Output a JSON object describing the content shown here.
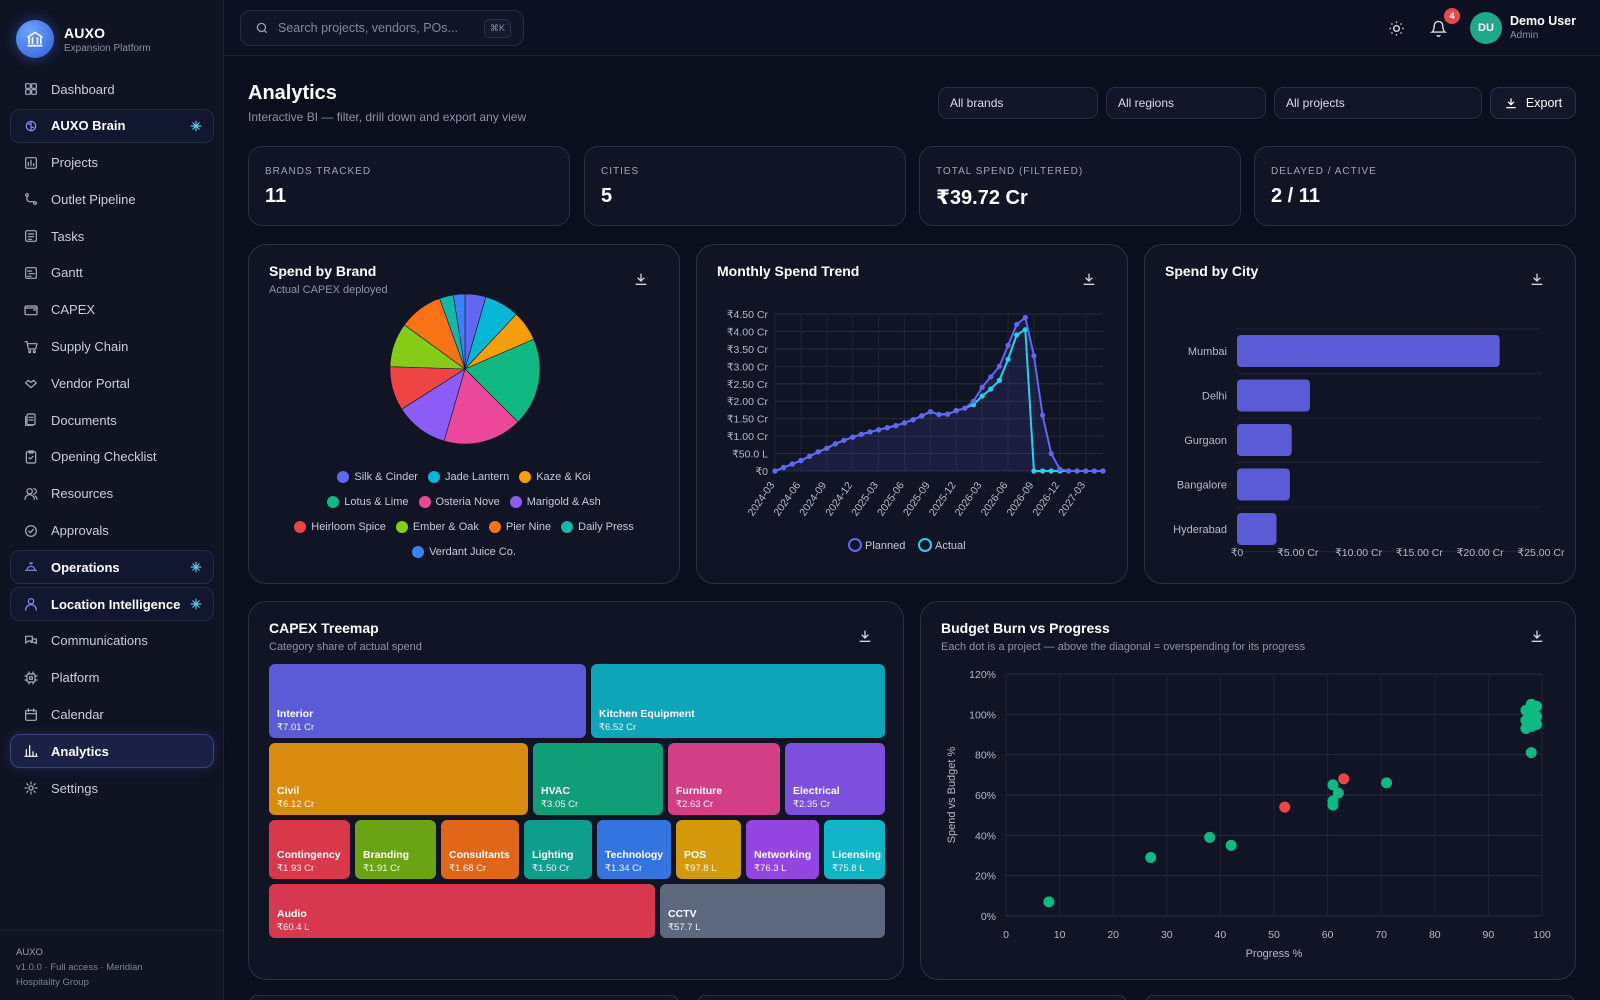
{
  "app": {
    "name": "AUXO",
    "subtitle": "Expansion Platform"
  },
  "sidebar": {
    "items": [
      {
        "label": "Dashboard",
        "icon": "dashboard-icon"
      },
      {
        "label": "AUXO Brain",
        "icon": "brain-icon",
        "pill": true
      },
      {
        "label": "Projects",
        "icon": "projects-icon"
      },
      {
        "label": "Outlet Pipeline",
        "icon": "pipeline-icon"
      },
      {
        "label": "Tasks",
        "icon": "tasks-icon"
      },
      {
        "label": "Gantt",
        "icon": "gantt-icon"
      },
      {
        "label": "CAPEX",
        "icon": "wallet-icon"
      },
      {
        "label": "Supply Chain",
        "icon": "cart-icon"
      },
      {
        "label": "Vendor Portal",
        "icon": "handshake-icon"
      },
      {
        "label": "Documents",
        "icon": "documents-icon"
      },
      {
        "label": "Opening Checklist",
        "icon": "checklist-icon"
      },
      {
        "label": "Resources",
        "icon": "users-icon"
      },
      {
        "label": "Approvals",
        "icon": "check-circle-icon"
      },
      {
        "label": "Operations",
        "icon": "bell-service-icon",
        "pill": true
      },
      {
        "label": "Location Intelligence",
        "icon": "location-icon",
        "pill": true
      },
      {
        "label": "Communications",
        "icon": "chat-icon"
      },
      {
        "label": "Platform",
        "icon": "chip-icon"
      },
      {
        "label": "Calendar",
        "icon": "calendar-icon"
      },
      {
        "label": "Analytics",
        "icon": "bar-chart-icon",
        "active": true
      },
      {
        "label": "Settings",
        "icon": "gear-icon"
      }
    ],
    "footer": {
      "title": "AUXO",
      "line1": "v1.0.0 · Full access · Meridian",
      "line2": "Hospitality Group"
    }
  },
  "topbar": {
    "search_placeholder": "Search projects, vendors, POs...",
    "shortcut": "⌘K",
    "notifications": "4",
    "user": {
      "initials": "DU",
      "name": "Demo User",
      "role": "Admin"
    }
  },
  "header": {
    "title": "Analytics",
    "subtitle": "Interactive BI — filter, drill down and export any view",
    "filters": [
      "All brands",
      "All regions",
      "All projects"
    ],
    "export_label": "Export"
  },
  "kpis": [
    {
      "label": "Brands Tracked",
      "value": "11"
    },
    {
      "label": "Cities",
      "value": "5"
    },
    {
      "label": "Total Spend (Filtered)",
      "value": "₹39.72 Cr"
    },
    {
      "label": "Delayed / Active",
      "value": "2 / 11"
    }
  ],
  "panels": {
    "brand": {
      "title": "Spend by Brand",
      "subtitle": "Actual CAPEX deployed"
    },
    "trend": {
      "title": "Monthly Spend Trend"
    },
    "city": {
      "title": "Spend by City"
    },
    "treemap": {
      "title": "CAPEX Treemap",
      "subtitle": "Category share of actual spend"
    },
    "burn": {
      "title": "Budget Burn vs Progress",
      "subtitle": "Each dot is a project — above the diagonal = overspending for its progress"
    }
  },
  "chart_data": [
    {
      "type": "pie",
      "title": "Spend by Brand",
      "subtitle": "Actual CAPEX deployed",
      "slices": [
        {
          "label": "Silk & Cinder",
          "value": 4.5,
          "color": "#6366f1"
        },
        {
          "label": "Jade Lantern",
          "value": 7.5,
          "color": "#06b6d4"
        },
        {
          "label": "Kaze & Koi",
          "value": 6.5,
          "color": "#f59e0b"
        },
        {
          "label": "Lotus & Lime",
          "value": 19.0,
          "color": "#10b981"
        },
        {
          "label": "Osteria Nove",
          "value": 17.0,
          "color": "#ec4899"
        },
        {
          "label": "Marigold & Ash",
          "value": 11.5,
          "color": "#8b5cf6"
        },
        {
          "label": "Heirloom Spice",
          "value": 9.5,
          "color": "#ef4444"
        },
        {
          "label": "Ember & Oak",
          "value": 9.5,
          "color": "#84cc16"
        },
        {
          "label": "Pier Nine",
          "value": 9.5,
          "color": "#f97316"
        },
        {
          "label": "Daily Press",
          "value": 3.0,
          "color": "#14b8a6"
        },
        {
          "label": "Verdant Juice Co.",
          "value": 2.5,
          "color": "#3b82f6"
        }
      ]
    },
    {
      "type": "line",
      "title": "Monthly Spend Trend",
      "x": [
        "2024-03",
        "2024-04",
        "2024-05",
        "2024-06",
        "2024-07",
        "2024-08",
        "2024-09",
        "2024-10",
        "2024-11",
        "2024-12",
        "2025-01",
        "2025-02",
        "2025-03",
        "2025-04",
        "2025-05",
        "2025-06",
        "2025-07",
        "2025-08",
        "2025-09",
        "2025-10",
        "2025-11",
        "2025-12",
        "2026-01",
        "2026-02",
        "2026-03",
        "2026-04",
        "2026-05",
        "2026-06",
        "2026-07",
        "2026-08",
        "2026-09",
        "2026-10",
        "2026-11",
        "2026-12",
        "2027-01",
        "2027-02",
        "2027-03",
        "2027-04",
        "2027-05"
      ],
      "x_ticks": [
        "2024-03",
        "2024-06",
        "2024-09",
        "2024-12",
        "2025-03",
        "2025-06",
        "2025-09",
        "2025-12",
        "2026-03",
        "2026-06",
        "2026-09",
        "2026-12",
        "2027-03"
      ],
      "y_ticks": [
        "₹0",
        "₹50.0 L",
        "₹1.00 Cr",
        "₹1.50 Cr",
        "₹2.00 Cr",
        "₹2.50 Cr",
        "₹3.00 Cr",
        "₹3.50 Cr",
        "₹4.00 Cr",
        "₹4.50 Cr"
      ],
      "ylim": [
        0,
        4.5
      ],
      "unit": "Cr",
      "series": [
        {
          "name": "Planned",
          "color": "#6366f1",
          "values": [
            0.0,
            0.1,
            0.2,
            0.3,
            0.42,
            0.55,
            0.65,
            0.78,
            0.88,
            0.97,
            1.05,
            1.12,
            1.18,
            1.24,
            1.3,
            1.38,
            1.47,
            1.58,
            1.7,
            1.62,
            1.63,
            1.73,
            1.8,
            2.0,
            2.4,
            2.7,
            3.0,
            3.6,
            4.2,
            4.4,
            3.3,
            1.6,
            0.5,
            0.05,
            0.0,
            0.0,
            0.0,
            0.0,
            0.0
          ]
        },
        {
          "name": "Actual",
          "color": "#22d3ee",
          "values": [
            0.0,
            0.1,
            0.2,
            0.3,
            0.42,
            0.55,
            0.65,
            0.78,
            0.88,
            0.97,
            1.05,
            1.12,
            1.18,
            1.24,
            1.3,
            1.38,
            1.47,
            1.58,
            1.7,
            1.62,
            1.63,
            1.73,
            1.8,
            1.9,
            2.15,
            2.35,
            2.6,
            3.2,
            3.9,
            4.05,
            0.0,
            0.0,
            0.0,
            0.0,
            0.0,
            0.0,
            0.0,
            0.0,
            0.0
          ]
        }
      ]
    },
    {
      "type": "bar",
      "orientation": "horizontal",
      "title": "Spend by City",
      "categories": [
        "Mumbai",
        "Delhi",
        "Gurgaon",
        "Bangalore",
        "Hyderabad"
      ],
      "values": [
        21.6,
        6.0,
        4.5,
        4.35,
        3.25
      ],
      "color": "#5b5bd6",
      "x_ticks": [
        "₹0",
        "₹5.00 Cr",
        "₹10.00 Cr",
        "₹15.00 Cr",
        "₹20.00 Cr",
        "₹25.00 Cr"
      ],
      "xlim": [
        0,
        25
      ]
    },
    {
      "type": "treemap",
      "title": "CAPEX Treemap",
      "subtitle": "Category share of actual spend",
      "items": [
        {
          "label": "Interior",
          "value": "₹7.01 Cr",
          "color": "#5b5bd6"
        },
        {
          "label": "Kitchen Equipment",
          "value": "₹6.52 Cr",
          "color": "#0ea5b9"
        },
        {
          "label": "Civil",
          "value": "₹6.12 Cr",
          "color": "#d98b0e"
        },
        {
          "label": "HVAC",
          "value": "₹3.05 Cr",
          "color": "#109e76"
        },
        {
          "label": "Furniture",
          "value": "₹2.63 Cr",
          "color": "#d23f86"
        },
        {
          "label": "Electrical",
          "value": "₹2.35 Cr",
          "color": "#7c4fdc"
        },
        {
          "label": "Contingency",
          "value": "₹1.93 Cr",
          "color": "#d9384a"
        },
        {
          "label": "Branding",
          "value": "₹1.91 Cr",
          "color": "#6aa414"
        },
        {
          "label": "Consultants",
          "value": "₹1.68 Cr",
          "color": "#e0661a"
        },
        {
          "label": "Lighting",
          "value": "₹1.50 Cr",
          "color": "#0f9e8d"
        },
        {
          "label": "Technology",
          "value": "₹1.34 Cr",
          "color": "#3474e0"
        },
        {
          "label": "POS",
          "value": "₹97.8 L",
          "color": "#d29a0b"
        },
        {
          "label": "Networking",
          "value": "₹76.3 L",
          "color": "#9444e0"
        },
        {
          "label": "Licensing",
          "value": "₹75.8 L",
          "color": "#12b4c8"
        },
        {
          "label": "Audio",
          "value": "₹60.4 L",
          "color": "#d8384f"
        },
        {
          "label": "CCTV",
          "value": "₹57.7 L",
          "color": "#5d687e"
        }
      ]
    },
    {
      "type": "scatter",
      "title": "Budget Burn vs Progress",
      "xlabel": "Progress %",
      "ylabel": "Spend vs Budget %",
      "xlim": [
        0,
        100
      ],
      "ylim": [
        0,
        120
      ],
      "x_ticks": [
        "0",
        "10",
        "20",
        "30",
        "40",
        "50",
        "60",
        "70",
        "80",
        "90",
        "100"
      ],
      "y_ticks": [
        "0%",
        "20%",
        "40%",
        "60%",
        "80%",
        "100%",
        "120%"
      ],
      "points": [
        {
          "x": 8,
          "y": 7,
          "status": "ok"
        },
        {
          "x": 27,
          "y": 29,
          "status": "ok"
        },
        {
          "x": 38,
          "y": 39,
          "status": "ok"
        },
        {
          "x": 42,
          "y": 35,
          "status": "ok"
        },
        {
          "x": 52,
          "y": 54,
          "status": "delayed"
        },
        {
          "x": 61,
          "y": 55,
          "status": "ok"
        },
        {
          "x": 61,
          "y": 57,
          "status": "ok"
        },
        {
          "x": 62,
          "y": 61,
          "status": "ok"
        },
        {
          "x": 61,
          "y": 65,
          "status": "ok"
        },
        {
          "x": 63,
          "y": 68,
          "status": "delayed"
        },
        {
          "x": 71,
          "y": 66,
          "status": "ok"
        },
        {
          "x": 98,
          "y": 81,
          "status": "ok"
        },
        {
          "x": 97,
          "y": 93,
          "status": "ok"
        },
        {
          "x": 98,
          "y": 94,
          "status": "ok"
        },
        {
          "x": 99,
          "y": 95,
          "status": "ok"
        },
        {
          "x": 97,
          "y": 97,
          "status": "ok"
        },
        {
          "x": 98,
          "y": 98,
          "status": "ok"
        },
        {
          "x": 99,
          "y": 99,
          "status": "ok"
        },
        {
          "x": 97,
          "y": 102,
          "status": "ok"
        },
        {
          "x": 98,
          "y": 103,
          "status": "ok"
        },
        {
          "x": 99,
          "y": 104,
          "status": "ok"
        },
        {
          "x": 98,
          "y": 105,
          "status": "ok"
        }
      ],
      "colors": {
        "ok": "#10b981",
        "delayed": "#ef4444"
      }
    }
  ]
}
